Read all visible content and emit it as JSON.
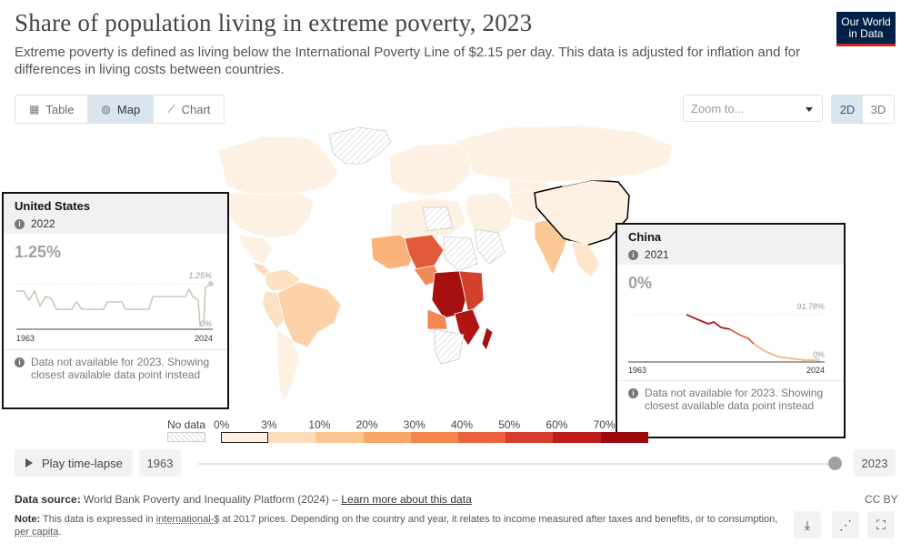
{
  "title": "Share of population living in extreme poverty, 2023",
  "subtitle": "Extreme poverty is defined as living below the International Poverty Line of $2.15 per day. This data is adjusted for inflation and for differences in living costs between countries.",
  "logo": {
    "line1": "Our World",
    "line2": "in Data",
    "bg": "#002147",
    "accent": "#ce261e"
  },
  "tabs": [
    {
      "label": "Table",
      "icon": "table-icon",
      "active": false
    },
    {
      "label": "Map",
      "icon": "globe-icon",
      "active": true
    },
    {
      "label": "Chart",
      "icon": "line-chart-icon",
      "active": false
    }
  ],
  "zoom": {
    "placeholder": "Zoom to..."
  },
  "dimension": {
    "options": [
      "2D",
      "3D"
    ],
    "selected": "2D"
  },
  "chart_data": {
    "type": "choropleth-map",
    "title": "Share of population living in extreme poverty, 2023",
    "legend": {
      "no_data_label": "No data",
      "bins": [
        "0%",
        "3%",
        "10%",
        "20%",
        "30%",
        "40%",
        "50%",
        "60%",
        "70%"
      ],
      "colors": [
        "#fef1e2",
        "#fcdcbd",
        "#fcc48f",
        "#f9a66a",
        "#f5844f",
        "#ec6240",
        "#d93c2c",
        "#be1c1c",
        "#9c0a0d"
      ]
    },
    "tooltips": [
      {
        "country": "United States",
        "year": "2022",
        "value": "1.25%",
        "sparkline": {
          "x_start": "1963",
          "x_end": "2024",
          "max_label": "1.25%",
          "min_label": "0%"
        },
        "note": "Data not available for 2023. Showing closest available data point instead"
      },
      {
        "country": "China",
        "year": "2021",
        "value": "0%",
        "sparkline": {
          "x_start": "1963",
          "x_end": "2024",
          "max_label": "91.78%",
          "min_label": "0%"
        },
        "note": "Data not available for 2023. Showing closest available data point instead"
      }
    ]
  },
  "timeline": {
    "play_label": "Play time-lapse",
    "start_year": "1963",
    "end_year": "2023"
  },
  "source": {
    "label": "Data source:",
    "text": "World Bank Poverty and Inequality Platform (2024) –",
    "link": "Learn more about this data",
    "license": "CC BY"
  },
  "footnote": {
    "label": "Note:",
    "text1": "This data is expressed in",
    "link1": "international-$",
    "text2": "at 2017 prices. Depending on the country and year, it relates to income measured after taxes and benefits, or to consumption,",
    "link2": "per capita",
    "text3": "."
  }
}
